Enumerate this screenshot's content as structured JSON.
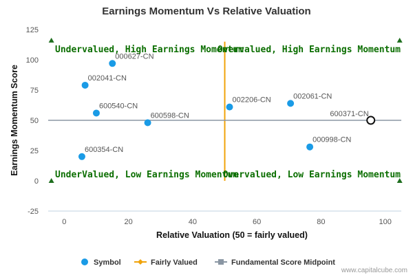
{
  "chart_data": {
    "type": "scatter",
    "title": "Earnings Momentum Vs Relative Valuation",
    "xlabel": "Relative Valuation (50 = fairly valued)",
    "ylabel": "Earnings Momentum Score",
    "xlim": [
      -5,
      105
    ],
    "ylim": [
      -25,
      125
    ],
    "x_ticks": [
      0,
      20,
      40,
      60,
      80,
      100
    ],
    "y_ticks": [
      -25,
      0,
      25,
      50,
      75,
      100,
      125
    ],
    "grid": false,
    "legend_position": "bottom",
    "fair_value_x": 50,
    "midpoint_y": 50,
    "quadrants": {
      "top_left": "Undervalued, High Earnings Momentum",
      "top_right": "Overvalued, High Earnings Momentum",
      "bottom_left": "UnderValued, Low Earnings Momentum",
      "bottom_right": "Overvalued, Low Earnings Momentum"
    },
    "series": [
      {
        "name": "Symbol",
        "points": [
          {
            "label": "000627-CN",
            "x": 15,
            "y": 97
          },
          {
            "label": "002041-CN",
            "x": 6.5,
            "y": 79
          },
          {
            "label": "600540-CN",
            "x": 10,
            "y": 56
          },
          {
            "label": "600598-CN",
            "x": 26,
            "y": 48
          },
          {
            "label": "600354-CN",
            "x": 5.5,
            "y": 20
          },
          {
            "label": "002206-CN",
            "x": 51.5,
            "y": 61
          },
          {
            "label": "002061-CN",
            "x": 70.5,
            "y": 64
          },
          {
            "label": "600371-CN",
            "x": 95.5,
            "y": 50,
            "highlighted": true
          },
          {
            "label": "000998-CN",
            "x": 76.5,
            "y": 28
          }
        ]
      },
      {
        "name": "Fairly Valued"
      },
      {
        "name": "Fundamental Score Midpoint"
      }
    ],
    "colors": {
      "point": "#1a9be6",
      "fair_line": "#f0a30a",
      "midpoint_line": "#8a96a3",
      "quadrant_text": "#0b6e00",
      "marker": "#1e6e1e"
    }
  },
  "credit": "www.capitalcube.com"
}
